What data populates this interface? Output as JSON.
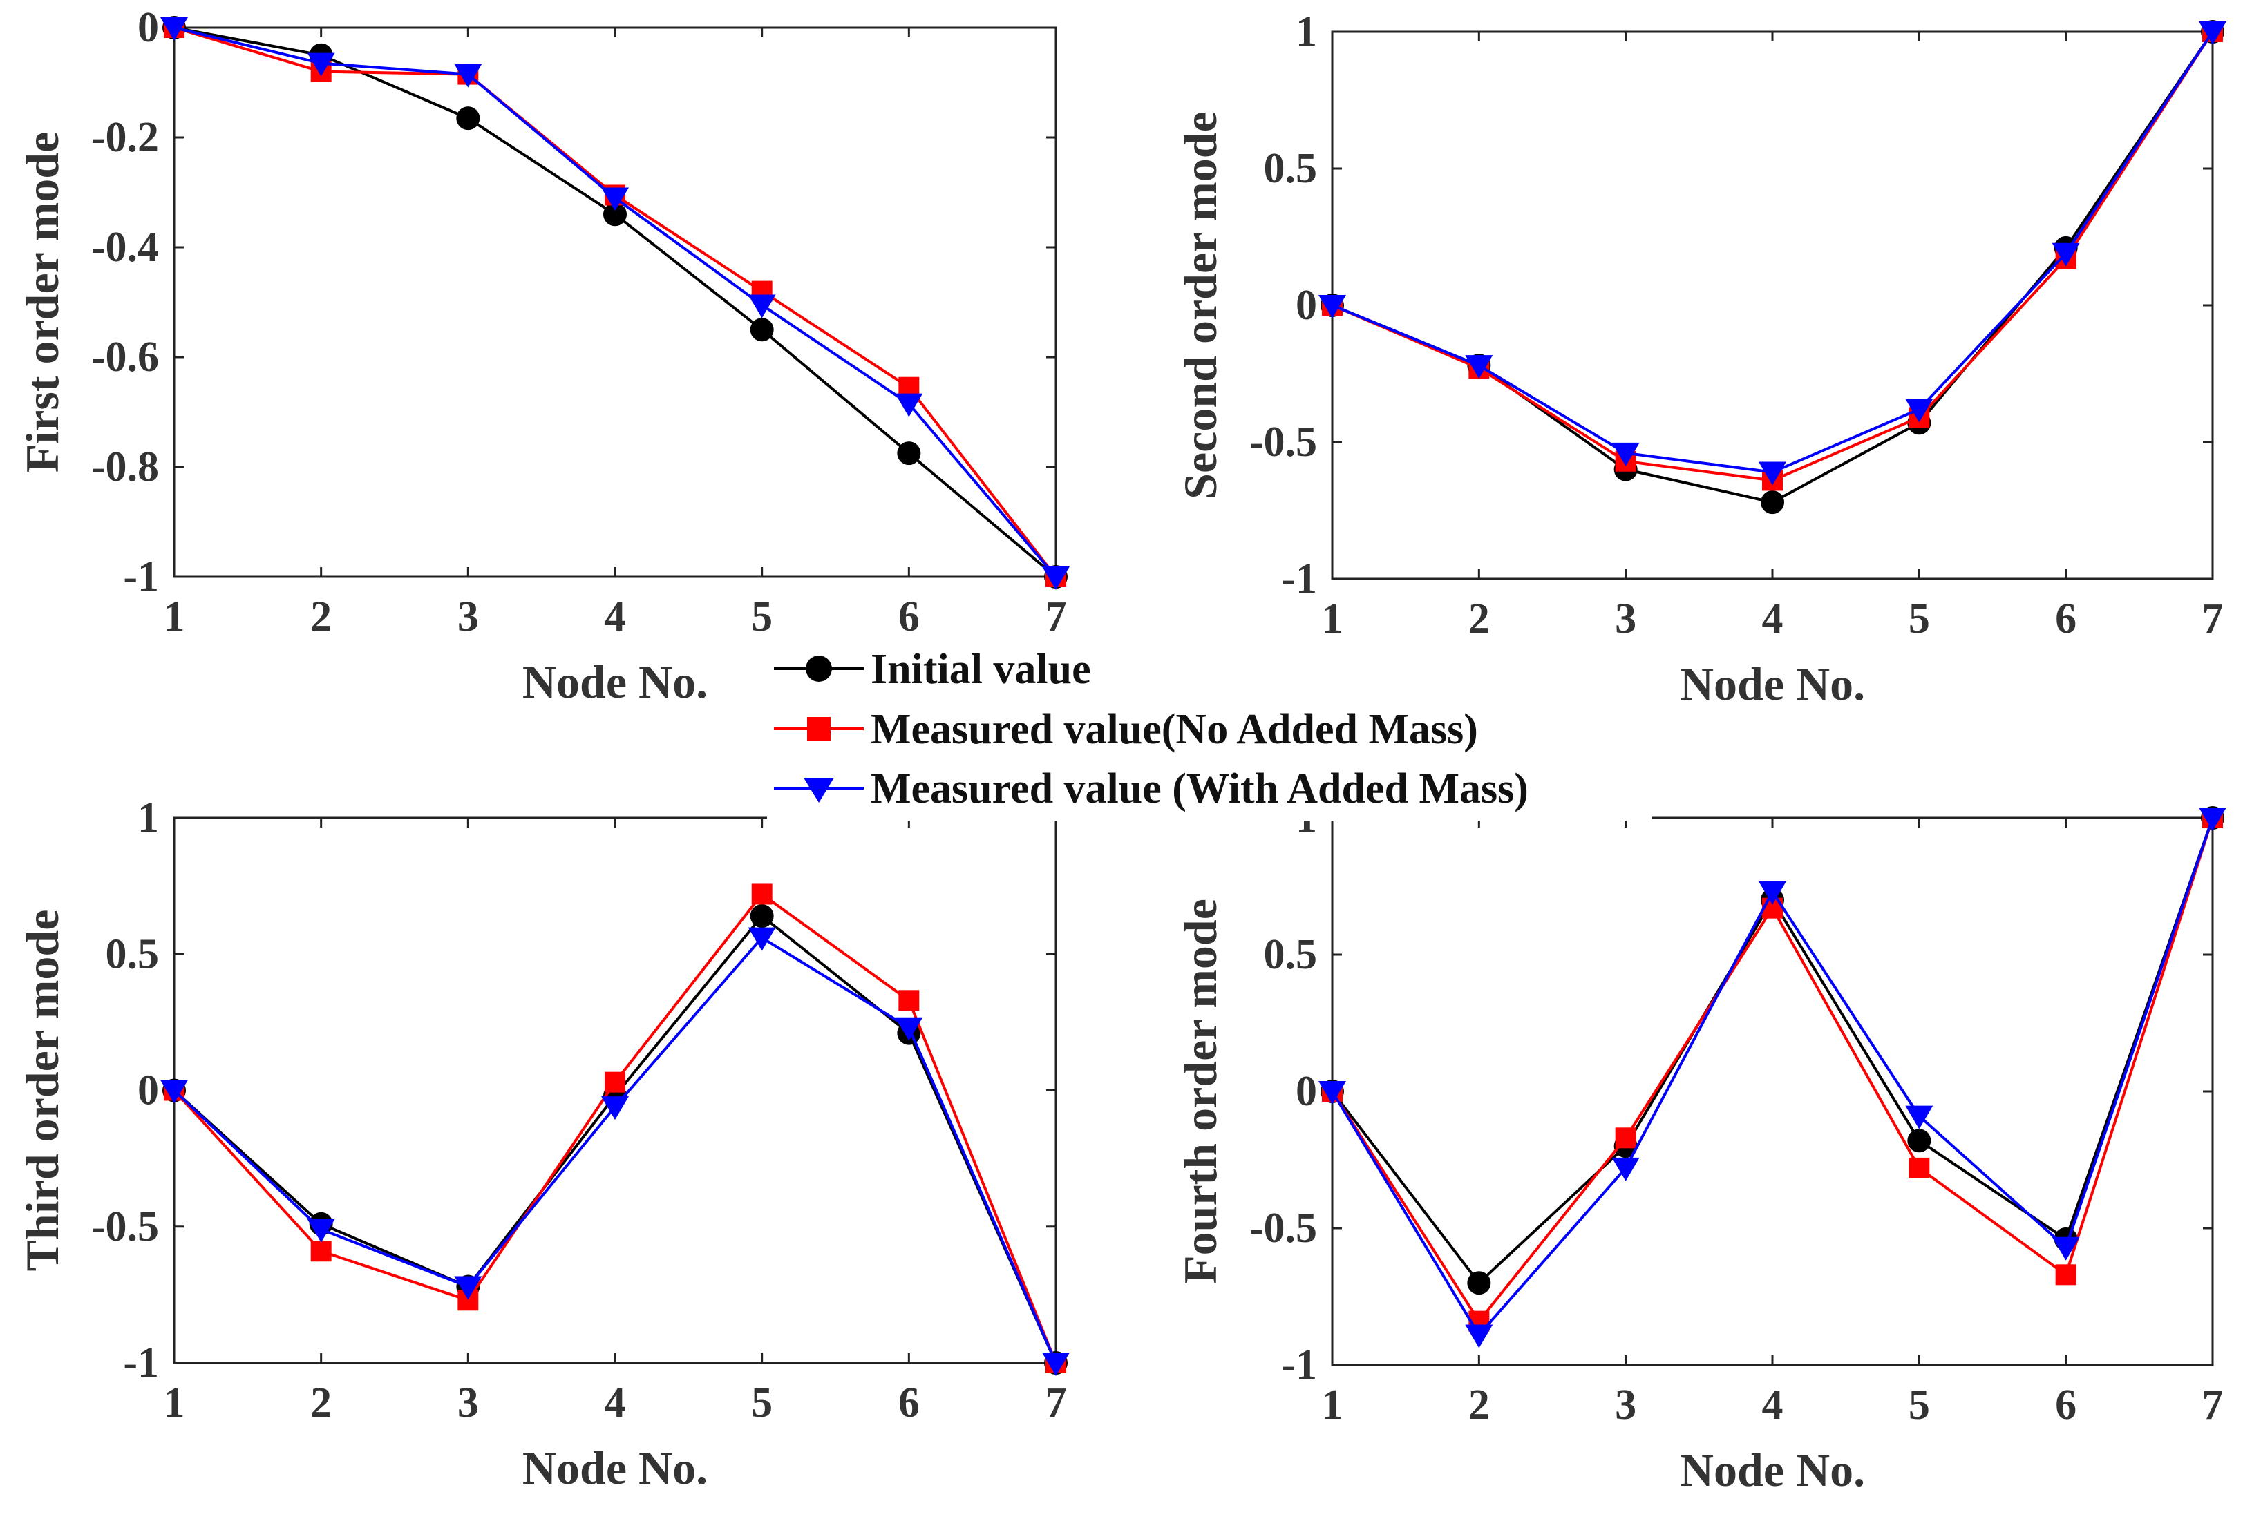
{
  "legend": {
    "entries": [
      {
        "label": "Initial value",
        "color": "#000000",
        "marker": "circle"
      },
      {
        "label": "Measured value(No Added Mass)",
        "color": "#ff0000",
        "marker": "square"
      },
      {
        "label": "Measured value (With Added Mass)",
        "color": "#0000ff",
        "marker": "triangle-down"
      }
    ]
  },
  "chart_data": [
    {
      "type": "line",
      "xlabel": "Node No.",
      "ylabel": "First order mode",
      "x": [
        1,
        2,
        3,
        4,
        5,
        6,
        7
      ],
      "xlim": [
        1,
        7
      ],
      "ylim": [
        -1,
        0
      ],
      "xticks": [
        "1",
        "2",
        "3",
        "4",
        "5",
        "6",
        "7"
      ],
      "yticks": [
        "0",
        "-0.2",
        "-0.4",
        "-0.6",
        "-0.8",
        "-1"
      ],
      "ytick_values": [
        0,
        -0.2,
        -0.4,
        -0.6,
        -0.8,
        -1
      ],
      "series": [
        {
          "name": "Initial value",
          "color": "#000000",
          "marker": "circle",
          "values": [
            0,
            -0.05,
            -0.165,
            -0.34,
            -0.55,
            -0.775,
            -1.0
          ]
        },
        {
          "name": "Measured value(No Added Mass)",
          "color": "#ff0000",
          "marker": "square",
          "values": [
            0,
            -0.08,
            -0.085,
            -0.305,
            -0.48,
            -0.655,
            -1.0
          ]
        },
        {
          "name": "Measured value (With Added Mass)",
          "color": "#0000ff",
          "marker": "triangle-down",
          "values": [
            0,
            -0.065,
            -0.085,
            -0.31,
            -0.505,
            -0.685,
            -1.0
          ]
        }
      ]
    },
    {
      "type": "line",
      "xlabel": "Node No.",
      "ylabel": "Second order mode",
      "x": [
        1,
        2,
        3,
        4,
        5,
        6,
        7
      ],
      "xlim": [
        1,
        7
      ],
      "ylim": [
        -1,
        1
      ],
      "xticks": [
        "1",
        "2",
        "3",
        "4",
        "5",
        "6",
        "7"
      ],
      "yticks": [
        "1",
        "0.5",
        "0",
        "-0.5",
        "-1"
      ],
      "ytick_values": [
        1,
        0.5,
        0,
        -0.5,
        -1
      ],
      "series": [
        {
          "name": "Initial value",
          "color": "#000000",
          "marker": "circle",
          "values": [
            0,
            -0.22,
            -0.6,
            -0.72,
            -0.43,
            0.21,
            1.0
          ]
        },
        {
          "name": "Measured value(No Added Mass)",
          "color": "#ff0000",
          "marker": "square",
          "values": [
            0,
            -0.23,
            -0.57,
            -0.64,
            -0.41,
            0.17,
            1.0
          ]
        },
        {
          "name": "Measured value (With Added Mass)",
          "color": "#0000ff",
          "marker": "triangle-down",
          "values": [
            0,
            -0.22,
            -0.54,
            -0.61,
            -0.38,
            0.19,
            1.0
          ]
        }
      ]
    },
    {
      "type": "line",
      "xlabel": "Node No.",
      "ylabel": "Third order mode",
      "x": [
        1,
        2,
        3,
        4,
        5,
        6,
        7
      ],
      "xlim": [
        1,
        7
      ],
      "ylim": [
        -1,
        1
      ],
      "xticks": [
        "1",
        "2",
        "3",
        "4",
        "5",
        "6",
        "7"
      ],
      "yticks": [
        "1",
        "0.5",
        "0",
        "-0.5",
        "-1"
      ],
      "ytick_values": [
        1,
        0.5,
        0,
        -0.5,
        -1
      ],
      "series": [
        {
          "name": "Initial value",
          "color": "#000000",
          "marker": "circle",
          "values": [
            0,
            -0.49,
            -0.72,
            -0.02,
            0.64,
            0.21,
            -1.0
          ]
        },
        {
          "name": "Measured value(No Added Mass)",
          "color": "#ff0000",
          "marker": "square",
          "values": [
            0,
            -0.59,
            -0.77,
            0.03,
            0.72,
            0.33,
            -1.0
          ]
        },
        {
          "name": "Measured value (With Added Mass)",
          "color": "#0000ff",
          "marker": "triangle-down",
          "values": [
            0,
            -0.51,
            -0.72,
            -0.06,
            0.56,
            0.23,
            -1.0
          ]
        }
      ]
    },
    {
      "type": "line",
      "xlabel": "Node No.",
      "ylabel": "Fourth order mode",
      "x": [
        1,
        2,
        3,
        4,
        5,
        6,
        7
      ],
      "xlim": [
        1,
        7
      ],
      "ylim": [
        -1,
        1
      ],
      "xticks": [
        "1",
        "2",
        "3",
        "4",
        "5",
        "6",
        "7"
      ],
      "yticks": [
        "1",
        "0.5",
        "0",
        "-0.5",
        "-1"
      ],
      "ytick_values": [
        1,
        0.5,
        0,
        -0.5,
        -1
      ],
      "series": [
        {
          "name": "Initial value",
          "color": "#000000",
          "marker": "circle",
          "values": [
            0,
            -0.7,
            -0.2,
            0.7,
            -0.18,
            -0.54,
            1.0
          ]
        },
        {
          "name": "Measured value(No Added Mass)",
          "color": "#ff0000",
          "marker": "square",
          "values": [
            0,
            -0.84,
            -0.17,
            0.67,
            -0.28,
            -0.67,
            1.0
          ]
        },
        {
          "name": "Measured value (With Added Mass)",
          "color": "#0000ff",
          "marker": "triangle-down",
          "values": [
            0,
            -0.89,
            -0.28,
            0.73,
            -0.09,
            -0.57,
            1.0
          ]
        }
      ]
    }
  ]
}
